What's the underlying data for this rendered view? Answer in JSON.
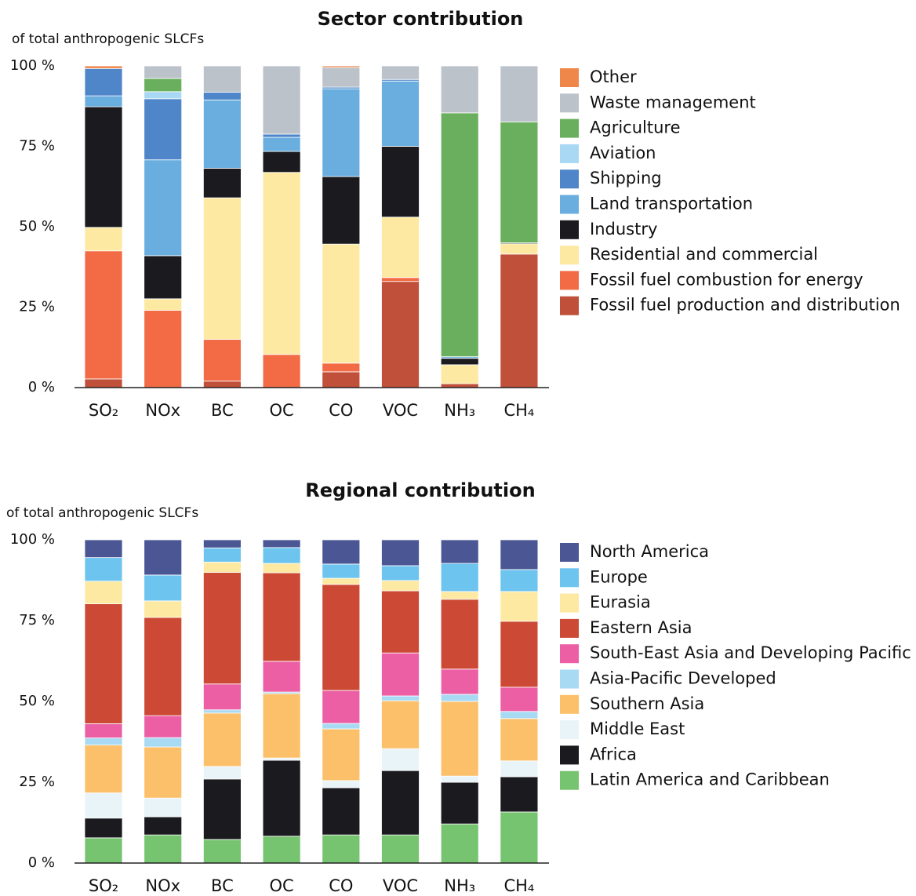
{
  "chart_data": [
    {
      "type": "bar",
      "stacked": true,
      "title": "Sector contribution",
      "y_label": "of total anthropogenic SLCFs",
      "categories": [
        "SO₂",
        "NOx",
        "BC",
        "OC",
        "CO",
        "VOC",
        "NH₃",
        "CH₄"
      ],
      "ylim": [
        0,
        100
      ],
      "yticks": [
        {
          "value": 0,
          "label": "0 %"
        },
        {
          "value": 25,
          "label": "25 %"
        },
        {
          "value": 50,
          "label": "50 %"
        },
        {
          "value": 75,
          "label": "75 %"
        },
        {
          "value": 100,
          "label": "100 %"
        }
      ],
      "series": [
        {
          "name": "Fossil fuel production and distribution",
          "color": "#c0503a",
          "values": [
            2.7,
            0,
            2,
            0,
            4.9,
            33,
            1.2,
            41.5
          ]
        },
        {
          "name": "Fossil fuel combustion for energy",
          "color": "#f26b45",
          "values": [
            39.8,
            24,
            13,
            10.3,
            2.7,
            1.2,
            0,
            0
          ]
        },
        {
          "name": "Residential and commercial",
          "color": "#fde9a1",
          "values": [
            7.3,
            3.6,
            44,
            56.6,
            37,
            18.8,
            5.9,
            3.2
          ]
        },
        {
          "name": "Industry",
          "color": "#1a1a1f",
          "values": [
            37.5,
            13.4,
            9.2,
            6.5,
            21,
            22,
            2,
            0.3
          ]
        },
        {
          "name": "Land transportation",
          "color": "#6aaee0",
          "values": [
            3.4,
            29.8,
            21.2,
            4.4,
            27.3,
            20.3,
            0.5,
            0
          ]
        },
        {
          "name": "Shipping",
          "color": "#4f86c9",
          "values": [
            8.5,
            19,
            2.4,
            1,
            0.5,
            0.5,
            0,
            0
          ]
        },
        {
          "name": "Aviation",
          "color": "#a8d8f4",
          "values": [
            0,
            2.2,
            0,
            0,
            0,
            0,
            0,
            0
          ]
        },
        {
          "name": "Agriculture",
          "color": "#6aaf5d",
          "values": [
            0,
            4.1,
            0,
            0,
            0,
            0,
            75.8,
            37.6
          ]
        },
        {
          "name": "Waste management",
          "color": "#bcc2ca",
          "values": [
            0,
            3.9,
            8.2,
            21.2,
            6.1,
            4.2,
            14.6,
            17.4
          ]
        },
        {
          "name": "Other",
          "color": "#f0874a",
          "values": [
            0.8,
            0,
            0,
            0,
            0.5,
            0,
            0,
            0
          ]
        }
      ]
    },
    {
      "type": "bar",
      "stacked": true,
      "title": "Regional contribution",
      "y_label": "of total anthropogenic SLCFs",
      "categories": [
        "SO₂",
        "NOx",
        "BC",
        "OC",
        "CO",
        "VOC",
        "NH₃",
        "CH₄"
      ],
      "ylim": [
        0,
        100
      ],
      "yticks": [
        {
          "value": 0,
          "label": "0 %"
        },
        {
          "value": 25,
          "label": "25 %"
        },
        {
          "value": 50,
          "label": "50 %"
        },
        {
          "value": 75,
          "label": "75 %"
        },
        {
          "value": 100,
          "label": "100 %"
        }
      ],
      "series": [
        {
          "name": "Latin America and Caribbean",
          "color": "#76c46f",
          "values": [
            7.8,
            8.7,
            7.3,
            8.3,
            8.7,
            8.7,
            12.1,
            15.8
          ]
        },
        {
          "name": "Africa",
          "color": "#1a1a1f",
          "values": [
            6.1,
            5.6,
            18.7,
            23.5,
            14.6,
            19.9,
            12.9,
            10.9
          ]
        },
        {
          "name": "Middle East",
          "color": "#e9f4f8",
          "values": [
            7.8,
            5.8,
            3.9,
            0.7,
            2.2,
            6.8,
            1.9,
            4.9
          ]
        },
        {
          "name": "Southern Asia",
          "color": "#fcc06a",
          "values": [
            14.8,
            15.8,
            16.5,
            19.9,
            16,
            14.8,
            23.1,
            13.1
          ]
        },
        {
          "name": "Asia-Pacific Developed",
          "color": "#a9daf4",
          "values": [
            2.2,
            2.9,
            1,
            0.5,
            1.7,
            1.5,
            2.2,
            2.2
          ]
        },
        {
          "name": "South-East Asia and Developing Pacific",
          "color": "#ec5fa5",
          "values": [
            4.4,
            6.8,
            8,
            9.5,
            10.2,
            13.3,
            7.8,
            7.5
          ]
        },
        {
          "name": "Eastern Asia",
          "color": "#cc4a35",
          "values": [
            37.1,
            30.4,
            34.5,
            27.4,
            32.8,
            19.2,
            21.6,
            20.4
          ]
        },
        {
          "name": "Eurasia",
          "color": "#fde9a1",
          "values": [
            7,
            5.1,
            3.2,
            2.9,
            1.9,
            3.2,
            2.4,
            9.2
          ]
        },
        {
          "name": "Europe",
          "color": "#6cc4ef",
          "values": [
            7.3,
            8,
            4.4,
            4.9,
            4.4,
            4.6,
            8.7,
            6.8
          ]
        },
        {
          "name": "North America",
          "color": "#4b5694",
          "values": [
            5.5,
            10.9,
            2.5,
            2.4,
            7.5,
            8,
            7.3,
            9.2
          ]
        }
      ]
    }
  ]
}
